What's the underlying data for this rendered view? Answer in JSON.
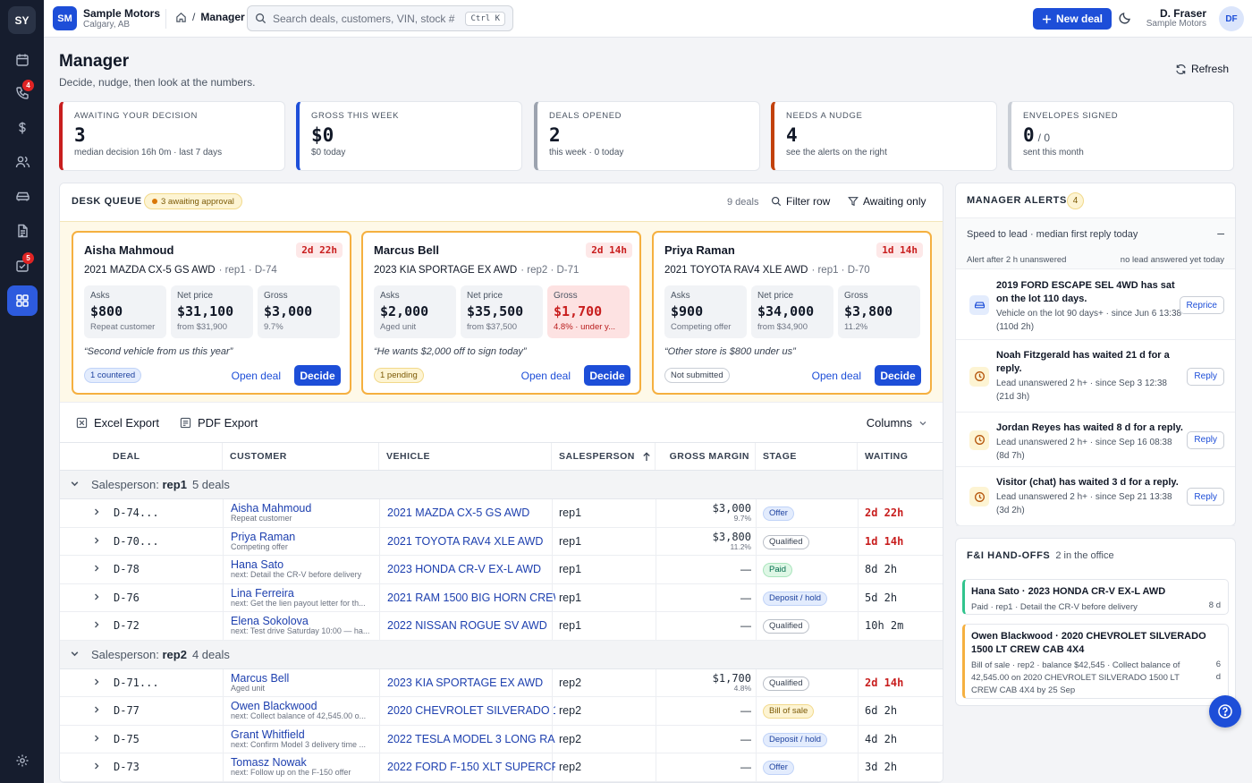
{
  "rail": {
    "logo": "SY",
    "items": [
      {
        "icon": "calendar-icon",
        "badge": ""
      },
      {
        "icon": "phone-icon",
        "badge": "4"
      },
      {
        "icon": "dollar-icon",
        "badge": ""
      },
      {
        "icon": "users-icon",
        "badge": ""
      },
      {
        "icon": "car-icon",
        "badge": ""
      },
      {
        "icon": "document-icon",
        "badge": ""
      },
      {
        "icon": "checklist-icon",
        "badge": "5"
      },
      {
        "icon": "grid-icon",
        "badge": ""
      }
    ],
    "active_icon": "grid-icon",
    "settings_icon": "gear-icon"
  },
  "topbar": {
    "org_initials": "SM",
    "org_name": "Sample Motors",
    "org_location": "Calgary, AB",
    "breadcrumb_sep": "/",
    "breadcrumb_current": "Manager",
    "search_placeholder": "Search deals, customers, VIN, stock #",
    "search_shortcut": "Ctrl K",
    "new_deal_label": "New deal",
    "user_name": "D. Fraser",
    "user_org": "Sample Motors",
    "user_initials": "DF"
  },
  "header": {
    "title": "Manager",
    "subtitle": "Decide, nudge, then look at the numbers.",
    "refresh_label": "Refresh"
  },
  "kpis": [
    {
      "label": "AWAITING YOUR DECISION",
      "value": "3",
      "value_suffix": "",
      "sub": "median decision 16h 0m · last 7 days",
      "color": "#c81e1e"
    },
    {
      "label": "GROSS THIS WEEK",
      "value": "$0",
      "value_suffix": "",
      "sub": "$0 today",
      "color": "#1d4ed8"
    },
    {
      "label": "DEALS OPENED",
      "value": "2",
      "value_suffix": "",
      "sub": "this week · 0 today",
      "color": "#9ca3af"
    },
    {
      "label": "NEEDS A NUDGE",
      "value": "4",
      "value_suffix": "",
      "sub": "see the alerts on the right",
      "color": "#c2410c"
    },
    {
      "label": "ENVELOPES SIGNED",
      "value": "0",
      "value_suffix": "/ 0",
      "sub": "sent this month",
      "color": "#c9ced6"
    }
  ],
  "desk": {
    "title": "DESK QUEUE",
    "awaiting_pill": "3 awaiting approval",
    "count": "9 deals",
    "filter_label": "Filter row",
    "awaiting_only_label": "Awaiting only",
    "cards": [
      {
        "name": "Aisha Mahmoud",
        "time": "2d 22h",
        "vehicle": "2021 MAZDA CX-5 GS AWD",
        "meta": "· rep1 · D-74",
        "boxes": [
          {
            "label": "Asks",
            "value": "$800",
            "sub": "Repeat customer",
            "bad": false
          },
          {
            "label": "Net price",
            "value": "$31,100",
            "sub": "from $31,900",
            "bad": false
          },
          {
            "label": "Gross",
            "value": "$3,000",
            "sub": "9.7%",
            "bad": false
          }
        ],
        "quote": "“Second vehicle from us this year”",
        "tag": "1 countered",
        "tag_style": "blue",
        "open_label": "Open deal",
        "decide_label": "Decide"
      },
      {
        "name": "Marcus Bell",
        "time": "2d 14h",
        "vehicle": "2023 KIA SPORTAGE EX AWD",
        "meta": "· rep2 · D-71",
        "boxes": [
          {
            "label": "Asks",
            "value": "$2,000",
            "sub": "Aged unit",
            "bad": false
          },
          {
            "label": "Net price",
            "value": "$35,500",
            "sub": "from $37,500",
            "bad": false
          },
          {
            "label": "Gross",
            "value": "$1,700",
            "sub": "4.8% · under y...",
            "bad": true
          }
        ],
        "quote": "“He wants $2,000 off to sign today”",
        "tag": "1 pending",
        "tag_style": "amber",
        "open_label": "Open deal",
        "decide_label": "Decide"
      },
      {
        "name": "Priya Raman",
        "time": "1d 14h",
        "vehicle": "2021 TOYOTA RAV4 XLE AWD",
        "meta": "· rep1 · D-70",
        "boxes": [
          {
            "label": "Asks",
            "value": "$900",
            "sub": "Competing offer",
            "bad": false
          },
          {
            "label": "Net price",
            "value": "$34,000",
            "sub": "from $34,900",
            "bad": false
          },
          {
            "label": "Gross",
            "value": "$3,800",
            "sub": "11.2%",
            "bad": false
          }
        ],
        "quote": "“Other store is $800 under us”",
        "tag": "Not submitted",
        "tag_style": "gray",
        "open_label": "Open deal",
        "decide_label": "Decide"
      }
    ]
  },
  "table": {
    "excel_label": "Excel Export",
    "pdf_label": "PDF Export",
    "columns_label": "Columns",
    "headers": [
      "DEAL",
      "CUSTOMER",
      "VEHICLE",
      "SALESPERSON",
      "GROSS MARGIN",
      "STAGE",
      "WAITING"
    ],
    "groups": [
      {
        "prefix": "Salesperson: ",
        "name": "rep1",
        "count": "5 deals",
        "rows": [
          {
            "deal": "D-74...",
            "customer": "Aisha Mahmoud",
            "customer_sub": "Repeat customer",
            "vehicle": "2021 MAZDA CX-5 GS AWD",
            "sp": "rep1",
            "gross": "$3,000",
            "pct": "9.7%",
            "stage": "Offer",
            "stage_style": "offer",
            "waiting": "2d 22h",
            "urgent": true
          },
          {
            "deal": "D-70...",
            "customer": "Priya Raman",
            "customer_sub": "Competing offer",
            "vehicle": "2021 TOYOTA RAV4 XLE AWD",
            "sp": "rep1",
            "gross": "$3,800",
            "pct": "11.2%",
            "stage": "Qualified",
            "stage_style": "qual",
            "waiting": "1d 14h",
            "urgent": true
          },
          {
            "deal": "D-78",
            "customer": "Hana Sato",
            "customer_sub": "next: Detail the CR-V before delivery",
            "vehicle": "2023 HONDA CR-V EX-L AWD",
            "sp": "rep1",
            "gross": "—",
            "pct": "",
            "stage": "Paid",
            "stage_style": "paid",
            "waiting": "8d 2h",
            "urgent": false
          },
          {
            "deal": "D-76",
            "customer": "Lina Ferreira",
            "customer_sub": "next: Get the lien payout letter for th...",
            "vehicle": "2021 RAM 1500 BIG HORN CREW",
            "sp": "rep1",
            "gross": "—",
            "pct": "",
            "stage": "Deposit / hold",
            "stage_style": "dep",
            "waiting": "5d 2h",
            "urgent": false
          },
          {
            "deal": "D-72",
            "customer": "Elena Sokolova",
            "customer_sub": "next: Test drive Saturday 10:00 — ha...",
            "vehicle": "2022 NISSAN ROGUE SV AWD",
            "sp": "rep1",
            "gross": "—",
            "pct": "",
            "stage": "Qualified",
            "stage_style": "qual",
            "waiting": "10h 2m",
            "urgent": false
          }
        ]
      },
      {
        "prefix": "Salesperson: ",
        "name": "rep2",
        "count": "4 deals",
        "rows": [
          {
            "deal": "D-71...",
            "customer": "Marcus Bell",
            "customer_sub": "Aged unit",
            "vehicle": "2023 KIA SPORTAGE EX AWD",
            "sp": "rep2",
            "gross": "$1,700",
            "pct": "4.8%",
            "stage": "Qualified",
            "stage_style": "qual",
            "waiting": "2d 14h",
            "urgent": true
          },
          {
            "deal": "D-77",
            "customer": "Owen Blackwood",
            "customer_sub": "next: Collect balance of 42,545.00 o...",
            "vehicle": "2020 CHEVROLET SILVERADO 1",
            "sp": "rep2",
            "gross": "—",
            "pct": "",
            "stage": "Bill of sale",
            "stage_style": "bill",
            "waiting": "6d 2h",
            "urgent": false
          },
          {
            "deal": "D-75",
            "customer": "Grant Whitfield",
            "customer_sub": "next: Confirm Model 3 delivery time ...",
            "vehicle": "2022 TESLA MODEL 3 LONG RA",
            "sp": "rep2",
            "gross": "—",
            "pct": "",
            "stage": "Deposit / hold",
            "stage_style": "dep",
            "waiting": "4d 2h",
            "urgent": false
          },
          {
            "deal": "D-73",
            "customer": "Tomasz Nowak",
            "customer_sub": "next: Follow up on the F-150 offer",
            "vehicle": "2022 FORD F-150 XLT SUPERCR",
            "sp": "rep2",
            "gross": "—",
            "pct": "",
            "stage": "Offer",
            "stage_style": "offer",
            "waiting": "3d 2h",
            "urgent": false
          }
        ]
      }
    ]
  },
  "alerts": {
    "title": "MANAGER ALERTS",
    "count": "4",
    "speed_title": "Speed to lead · median first reply today",
    "speed_toggle": "–",
    "speed_left": "Alert after 2 h unanswered",
    "speed_right": "no lead answered yet today",
    "items": [
      {
        "icon": "car-icon",
        "style": "blue",
        "title": "2019 FORD ESCAPE SEL 4WD has sat on the lot 110 days.",
        "sub": "Vehicle on the lot 90 days+ · since Jun 6 13:38 (110d 2h)",
        "action": "Reprice"
      },
      {
        "icon": "clock-icon",
        "style": "amber",
        "title": "Noah Fitzgerald has waited 21 d for a reply.",
        "sub": "Lead unanswered 2 h+ · since Sep 3 12:38 (21d 3h)",
        "action": "Reply"
      },
      {
        "icon": "clock-icon",
        "style": "amber",
        "title": "Jordan Reyes has waited 8 d for a reply.",
        "sub": "Lead unanswered 2 h+ · since Sep 16 08:38 (8d 7h)",
        "action": "Reply"
      },
      {
        "icon": "clock-icon",
        "style": "amber",
        "title": "Visitor (chat) has waited 3 d for a reply.",
        "sub": "Lead unanswered 2 h+ · since Sep 21 13:38 (3d 2h)",
        "action": "Reply"
      }
    ]
  },
  "fni": {
    "title": "F&I HAND-OFFS",
    "subtitle": "2 in the office",
    "items": [
      {
        "title": "Hana Sato · 2023 HONDA CR-V EX-L AWD",
        "sub": "Paid · rep1 · Detail the CR-V before delivery",
        "days": "8 d",
        "color": "#31c48d"
      },
      {
        "title": "Owen Blackwood · 2020 CHEVROLET SILVERADO 1500 LT CREW CAB 4X4",
        "sub": "Bill of sale · rep2 · balance $42,545 · Collect balance of 42,545.00 on 2020 CHEVROLET SILVERADO 1500 LT CREW CAB 4X4 by 25 Sep",
        "days": "6 d",
        "color": "#f5b040"
      }
    ]
  },
  "help_icon": "help-icon"
}
